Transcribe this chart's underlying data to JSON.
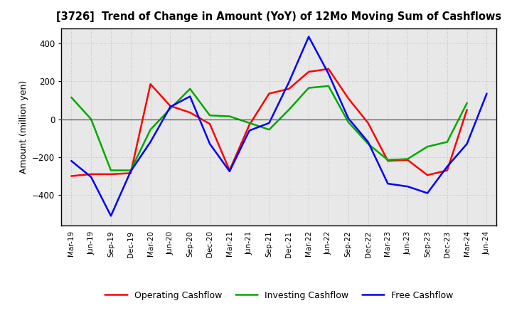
{
  "title": "[3726]  Trend of Change in Amount (YoY) of 12Mo Moving Sum of Cashflows",
  "ylabel": "Amount (million yen)",
  "labels": [
    "Mar-19",
    "Jun-19",
    "Sep-19",
    "Dec-19",
    "Mar-20",
    "Jun-20",
    "Sep-20",
    "Dec-20",
    "Mar-21",
    "Jun-21",
    "Sep-21",
    "Dec-21",
    "Mar-22",
    "Jun-22",
    "Sep-22",
    "Dec-22",
    "Mar-23",
    "Jun-23",
    "Sep-23",
    "Dec-23",
    "Mar-24",
    "Jun-24"
  ],
  "operating": [
    -300,
    -290,
    -290,
    -285,
    185,
    70,
    35,
    -25,
    -270,
    -30,
    135,
    160,
    250,
    265,
    110,
    -20,
    -220,
    -215,
    -295,
    -270,
    50,
    null
  ],
  "investing": [
    115,
    0,
    -270,
    -270,
    -55,
    55,
    160,
    20,
    15,
    -20,
    -55,
    50,
    165,
    175,
    -15,
    -130,
    -215,
    -210,
    -145,
    -120,
    85,
    null
  ],
  "free": [
    -220,
    -305,
    -510,
    -275,
    -120,
    65,
    120,
    -130,
    -275,
    -60,
    -20,
    195,
    435,
    240,
    5,
    -120,
    -340,
    -355,
    -390,
    -250,
    -130,
    135
  ],
  "operating_color": "#ff0000",
  "investing_color": "#00aa00",
  "free_color": "#0000ff",
  "ylim": [
    -560,
    480
  ],
  "yticks": [
    -400,
    -200,
    0,
    200,
    400
  ],
  "plot_bg_color": "#e8e8e8",
  "bg_color": "#ffffff",
  "grid_color": "#bbbbbb"
}
